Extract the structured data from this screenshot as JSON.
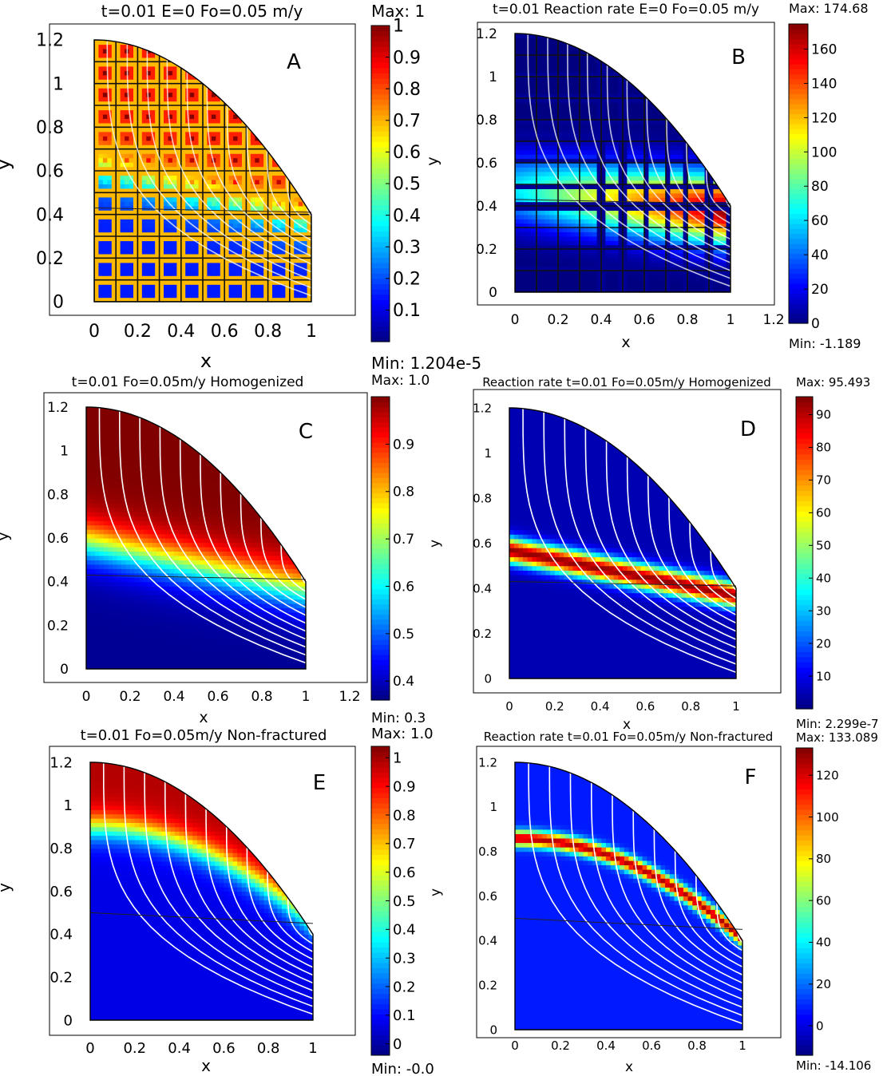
{
  "chart_data": [
    {
      "type": "heatmap",
      "panel": "A",
      "title": "t=0.01 E=0 Fo=0.05 m/y",
      "xlabel": "x",
      "ylabel": "y",
      "x_ticks": [
        "0",
        "0.2",
        "0.4",
        "0.6",
        "0.8",
        "1"
      ],
      "y_ticks": [
        "0",
        "0.2",
        "0.4",
        "0.6",
        "0.8",
        "1",
        "1.2"
      ],
      "xlim": [
        -0.2,
        1.2
      ],
      "ylim": [
        -0.08,
        1.26
      ],
      "colorbar": {
        "max_label": "Max: 1",
        "min_label": "Min: 1.204e-5",
        "range": [
          0,
          1
        ],
        "ticks": [
          "0.1",
          "0.2",
          "0.3",
          "0.4",
          "0.5",
          "0.6",
          "0.7",
          "0.8",
          "0.9",
          "1"
        ]
      },
      "mesh": "fractured",
      "domain": {
        "x_max": 1.0,
        "y_top_left": 1.2,
        "y_top_right": 0.4
      },
      "interface_y": [
        0.43,
        0.41
      ]
    },
    {
      "type": "heatmap",
      "panel": "B",
      "title": "t=0.01 Reaction rate E=0 Fo=0.05 m/y",
      "xlabel": "x",
      "ylabel": "y",
      "x_ticks": [
        "0",
        "0.2",
        "0.4",
        "0.6",
        "0.8",
        "1",
        "1.2"
      ],
      "y_ticks": [
        "0",
        "0.2",
        "0.4",
        "0.6",
        "0.8",
        "1",
        "1.2"
      ],
      "xlim": [
        -0.2,
        1.2
      ],
      "ylim": [
        -0.05,
        1.25
      ],
      "colorbar": {
        "max_label": "Max: 174.68",
        "min_label": "Min: -1.189",
        "range": [
          0,
          174.68
        ],
        "ticks": [
          "0",
          "20",
          "40",
          "60",
          "80",
          "100",
          "120",
          "140",
          "160"
        ]
      },
      "mesh": "fractured",
      "domain": {
        "x_max": 1.0,
        "y_top_left": 1.2,
        "y_top_right": 0.4
      },
      "interface_y": [
        0.43,
        0.41
      ]
    },
    {
      "type": "heatmap",
      "panel": "C",
      "title": "t=0.01 Fo=0.05m/y Homogenized",
      "xlabel": "x",
      "ylabel": "y",
      "x_ticks": [
        "0",
        "0.2",
        "0.4",
        "0.6",
        "0.8",
        "1",
        "1.2"
      ],
      "y_ticks": [
        "0",
        "0.2",
        "0.4",
        "0.6",
        "0.8",
        "1",
        "1.2"
      ],
      "xlim": [
        -0.2,
        1.2
      ],
      "ylim": [
        -0.05,
        1.25
      ],
      "colorbar": {
        "max_label": "Max: 1.0",
        "min_label": "Min: 0.3",
        "range": [
          0.36,
          1.0
        ],
        "ticks": [
          "0.4",
          "0.5",
          "0.6",
          "0.7",
          "0.8",
          "0.9"
        ]
      },
      "mesh": "homogeneous",
      "domain": {
        "x_max": 1.0,
        "y_top_left": 1.2,
        "y_top_right": 0.4
      },
      "interface_y": [
        0.43,
        0.41
      ]
    },
    {
      "type": "heatmap",
      "panel": "D",
      "title": "Reaction rate t=0.01 Fo=0.05m/y Homogenized",
      "xlabel": "x",
      "ylabel": "y",
      "x_ticks": [
        "0",
        "0.2",
        "0.4",
        "0.6",
        "0.8",
        "1"
      ],
      "y_ticks": [
        "0",
        "0.2",
        "0.4",
        "0.6",
        "0.8",
        "1",
        "1.2"
      ],
      "xlim": [
        -0.2,
        1.2
      ],
      "ylim": [
        -0.05,
        1.25
      ],
      "colorbar": {
        "max_label": "Max: 95.493",
        "min_label": "Min: 2.299e-7",
        "range": [
          0,
          95.493
        ],
        "ticks": [
          "10",
          "20",
          "30",
          "40",
          "50",
          "60",
          "70",
          "80",
          "90"
        ]
      },
      "mesh": "homogeneous",
      "domain": {
        "x_max": 1.0,
        "y_top_left": 1.2,
        "y_top_right": 0.4
      },
      "interface_y": [
        0.43,
        0.41
      ]
    },
    {
      "type": "heatmap",
      "panel": "E",
      "title": "t=0.01 Fo=0.05m/y Non-fractured",
      "xlabel": "x",
      "ylabel": "y",
      "x_ticks": [
        "0",
        "0.2",
        "0.4",
        "0.6",
        "0.8",
        "1"
      ],
      "y_ticks": [
        "0",
        "0.2",
        "0.4",
        "0.6",
        "0.8",
        "1",
        "1.2"
      ],
      "xlim": [
        -0.2,
        1.2
      ],
      "ylim": [
        -0.05,
        1.25
      ],
      "colorbar": {
        "max_label": "Max: 1.0",
        "min_label": "Min: -0.0",
        "range": [
          -0.04,
          1.04
        ],
        "ticks": [
          "0",
          "0.1",
          "0.2",
          "0.3",
          "0.4",
          "0.5",
          "0.6",
          "0.7",
          "0.8",
          "0.9",
          "1"
        ]
      },
      "mesh": "non-fractured",
      "domain": {
        "x_max": 1.0,
        "y_top_left": 1.2,
        "y_top_right": 0.4
      },
      "interface_y": [
        0.5,
        0.45
      ]
    },
    {
      "type": "heatmap",
      "panel": "F",
      "title": "Reaction rate t=0.01 Fo=0.05m/y Non-fractured",
      "xlabel": "x",
      "ylabel": "y",
      "x_ticks": [
        "0",
        "0.2",
        "0.4",
        "0.6",
        "0.8",
        "1"
      ],
      "y_ticks": [
        "0",
        "0.2",
        "0.4",
        "0.6",
        "0.8",
        "1",
        "1.2"
      ],
      "xlim": [
        -0.2,
        1.2
      ],
      "ylim": [
        -0.05,
        1.25
      ],
      "colorbar": {
        "max_label": "Max: 133.089",
        "min_label": "Min: -14.106",
        "range": [
          -14.106,
          133.089
        ],
        "ticks": [
          "0",
          "20",
          "40",
          "60",
          "80",
          "100",
          "120"
        ]
      },
      "mesh": "non-fractured",
      "domain": {
        "x_max": 1.0,
        "y_top_left": 1.2,
        "y_top_right": 0.4
      },
      "interface_y": [
        0.5,
        0.45
      ]
    }
  ]
}
